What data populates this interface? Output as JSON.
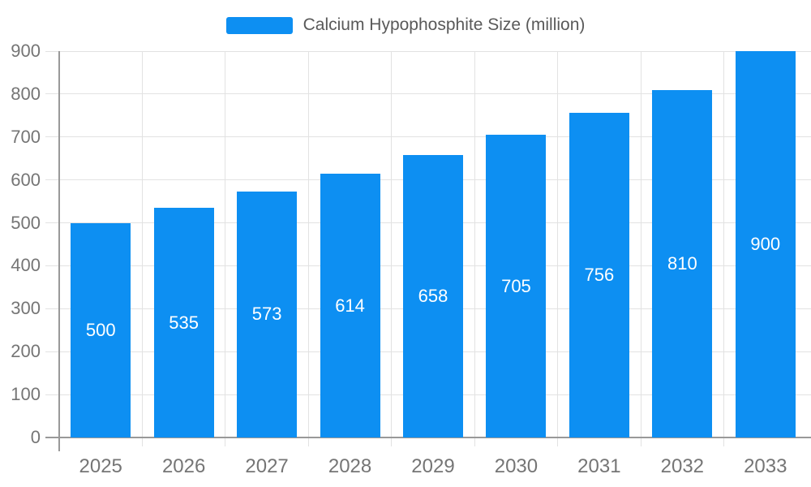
{
  "legend": {
    "label": "Calcium Hypophosphite Size (million)"
  },
  "colors": {
    "bar": "#0D8FF2",
    "axis_line": "#999999",
    "gridline": "#E2E2E2",
    "axis_text": "#757575",
    "legend_text": "#595959",
    "bar_label": "#FFFFFF",
    "background": "#FFFFFF"
  },
  "chart_data": {
    "type": "bar",
    "title": "Calcium Hypophosphite Size (million)",
    "series_name": "Calcium Hypophosphite Size (million)",
    "categories": [
      "2025",
      "2026",
      "2027",
      "2028",
      "2029",
      "2030",
      "2031",
      "2032",
      "2033"
    ],
    "values": [
      500,
      535,
      573,
      614,
      658,
      705,
      756,
      810,
      900
    ],
    "xlabel": "",
    "ylabel": "",
    "ylim": [
      0,
      900
    ],
    "ytick_interval": 100,
    "ytick_labels": [
      "0",
      "100",
      "200",
      "300",
      "400",
      "500",
      "600",
      "700",
      "800",
      "900"
    ],
    "grid": true,
    "bar_labels_inside": true,
    "legend_position": "top-center"
  }
}
